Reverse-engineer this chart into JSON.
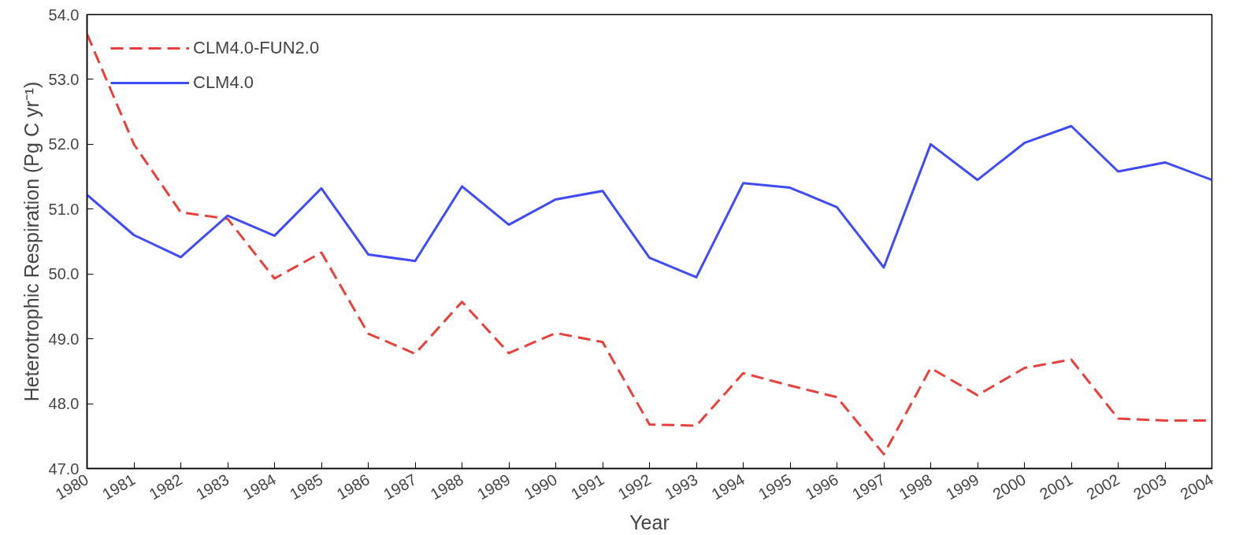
{
  "chart_data": {
    "type": "line",
    "xlabel": "Year",
    "ylabel": "Heterotrophic Respiration (Pg C yr⁻¹)",
    "x": [
      1980,
      1981,
      1982,
      1983,
      1984,
      1985,
      1986,
      1987,
      1988,
      1989,
      1990,
      1991,
      1992,
      1993,
      1994,
      1995,
      1996,
      1997,
      1998,
      1999,
      2000,
      2001,
      2002,
      2003,
      2004
    ],
    "series": [
      {
        "name": "CLM4.0-FUN2.0",
        "color": "#e8413c",
        "line_style": "dashed",
        "values": [
          53.7,
          52.0,
          50.95,
          50.85,
          49.93,
          50.33,
          49.08,
          48.77,
          49.57,
          48.78,
          49.09,
          48.95,
          47.68,
          47.66,
          48.47,
          48.28,
          48.1,
          47.22,
          48.55,
          48.13,
          48.55,
          48.68,
          47.77,
          47.74,
          47.74
        ]
      },
      {
        "name": "CLM4.0",
        "color": "#3f4cf5",
        "line_style": "solid",
        "values": [
          51.22,
          50.6,
          50.26,
          50.9,
          50.59,
          51.32,
          50.3,
          50.2,
          51.35,
          50.76,
          51.15,
          51.28,
          50.25,
          49.95,
          51.4,
          51.33,
          51.03,
          50.1,
          52.0,
          51.45,
          52.02,
          52.28,
          51.58,
          51.72,
          51.45
        ]
      }
    ],
    "xlim": [
      1980,
      2004
    ],
    "xticks": [
      1980,
      1981,
      1982,
      1983,
      1984,
      1985,
      1986,
      1987,
      1988,
      1989,
      1990,
      1991,
      1992,
      1993,
      1994,
      1995,
      1996,
      1997,
      1998,
      1999,
      2000,
      2001,
      2002,
      2003,
      2004
    ],
    "ylim": [
      47,
      54
    ],
    "yticks": [
      {
        "value": 47,
        "label": "47.0"
      },
      {
        "value": 48,
        "label": "48.0"
      },
      {
        "value": 49,
        "label": "49.0"
      },
      {
        "value": 50,
        "label": "50.0"
      },
      {
        "value": 51,
        "label": "51.0"
      },
      {
        "value": 52,
        "label": "52.0"
      },
      {
        "value": 53,
        "label": "53.0"
      },
      {
        "value": 54,
        "label": "54.0"
      }
    ],
    "grid": false,
    "legend": "top left",
    "marker": "none"
  }
}
